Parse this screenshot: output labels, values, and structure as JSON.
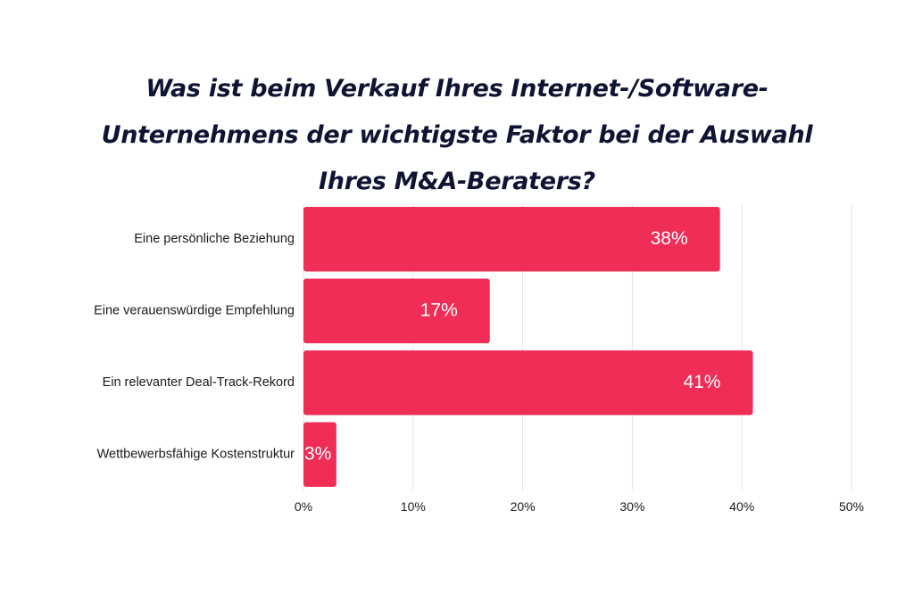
{
  "chart_data": {
    "type": "bar",
    "orientation": "horizontal",
    "title": "Was ist beim Verkauf Ihres Internet-/Software-Unternehmens der wichtigste Faktor bei der Auswahl Ihres M&A-Beraters?",
    "title_lines": [
      "Was ist beim Verkauf Ihres Internet-/Software-",
      "Unternehmens der wichtigste Faktor bei der Auswahl",
      "Ihres M&A-Beraters?"
    ],
    "categories": [
      "Eine persönliche Beziehung",
      "Eine verauenswürdige Empfehlung",
      "Ein relevanter Deal-Track-Rekord",
      "Wettbewerbsfähige Kostenstruktur"
    ],
    "values": [
      38,
      17,
      41,
      3
    ],
    "data_labels": [
      "38%",
      "17%",
      "41%",
      "3%"
    ],
    "x_ticks": [
      0,
      10,
      20,
      30,
      40,
      50
    ],
    "x_tick_labels": [
      "0%",
      "10%",
      "20%",
      "30%",
      "40%",
      "50%"
    ],
    "xlim": [
      0,
      50
    ],
    "xlabel": "",
    "ylabel": "",
    "grid": "vertical",
    "legend": "none",
    "bar_color": "#ef2d56",
    "title_color": "#0f1433"
  }
}
